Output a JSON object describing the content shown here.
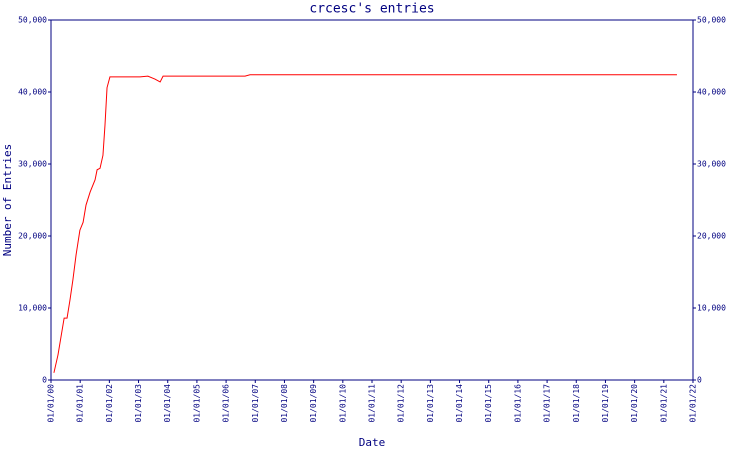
{
  "chart_data": {
    "type": "line",
    "title": "crcesc's entries",
    "x_label": "Date",
    "y_label": "Number of Entries",
    "color": "#ff0000",
    "axis_color": "#000080",
    "x": [
      2000.1,
      2000.24,
      2000.45,
      2000.55,
      2000.65,
      2000.75,
      2000.86,
      2000.99,
      2001.1,
      2001.2,
      2001.34,
      2001.51,
      2001.58,
      2001.68,
      2001.78,
      2001.85,
      2001.92,
      2002.02,
      2003.05,
      2003.32,
      2003.56,
      2003.74,
      2003.84,
      2006.65,
      2006.82,
      2021.45
    ],
    "values": [
      1000,
      3500,
      8600,
      8600,
      11100,
      13900,
      17400,
      20800,
      21900,
      24300,
      26100,
      27800,
      29200,
      29400,
      31200,
      35400,
      40600,
      42100,
      42100,
      42200,
      41800,
      41400,
      42200,
      42200,
      42400,
      42400
    ],
    "xlim": [
      2000,
      2022
    ],
    "xticks": [
      {
        "value": 2000,
        "label": "01/01/00"
      },
      {
        "value": 2001,
        "label": "01/01/01"
      },
      {
        "value": 2002,
        "label": "01/01/02"
      },
      {
        "value": 2003,
        "label": "01/01/03"
      },
      {
        "value": 2004,
        "label": "01/01/04"
      },
      {
        "value": 2005,
        "label": "01/01/05"
      },
      {
        "value": 2006,
        "label": "01/01/06"
      },
      {
        "value": 2007,
        "label": "01/01/07"
      },
      {
        "value": 2008,
        "label": "01/01/08"
      },
      {
        "value": 2009,
        "label": "01/01/09"
      },
      {
        "value": 2010,
        "label": "01/01/10"
      },
      {
        "value": 2011,
        "label": "01/01/11"
      },
      {
        "value": 2012,
        "label": "01/01/12"
      },
      {
        "value": 2013,
        "label": "01/01/13"
      },
      {
        "value": 2014,
        "label": "01/01/14"
      },
      {
        "value": 2015,
        "label": "01/01/15"
      },
      {
        "value": 2016,
        "label": "01/01/16"
      },
      {
        "value": 2017,
        "label": "01/01/17"
      },
      {
        "value": 2018,
        "label": "01/01/18"
      },
      {
        "value": 2019,
        "label": "01/01/19"
      },
      {
        "value": 2020,
        "label": "01/01/20"
      },
      {
        "value": 2021,
        "label": "01/01/21"
      },
      {
        "value": 2022,
        "label": "01/01/22"
      }
    ],
    "ylim": [
      0,
      50000
    ],
    "yticks": [
      0,
      {
        "value": 10000,
        "label": "10,000"
      },
      {
        "value": 20000,
        "label": "20,000"
      },
      {
        "value": 30000,
        "label": "30,000"
      },
      {
        "value": 40000,
        "label": "40,000"
      },
      {
        "value": 50000,
        "label": "50,000"
      }
    ],
    "y2lim": [
      0,
      50000
    ],
    "y2ticks": [
      0,
      {
        "value": 10000,
        "label": "10,000"
      },
      {
        "value": 20000,
        "label": "20,000"
      },
      {
        "value": 30000,
        "label": "30,000"
      },
      {
        "value": 40000,
        "label": "40,000"
      },
      {
        "value": 50000,
        "label": "50,000"
      }
    ]
  }
}
